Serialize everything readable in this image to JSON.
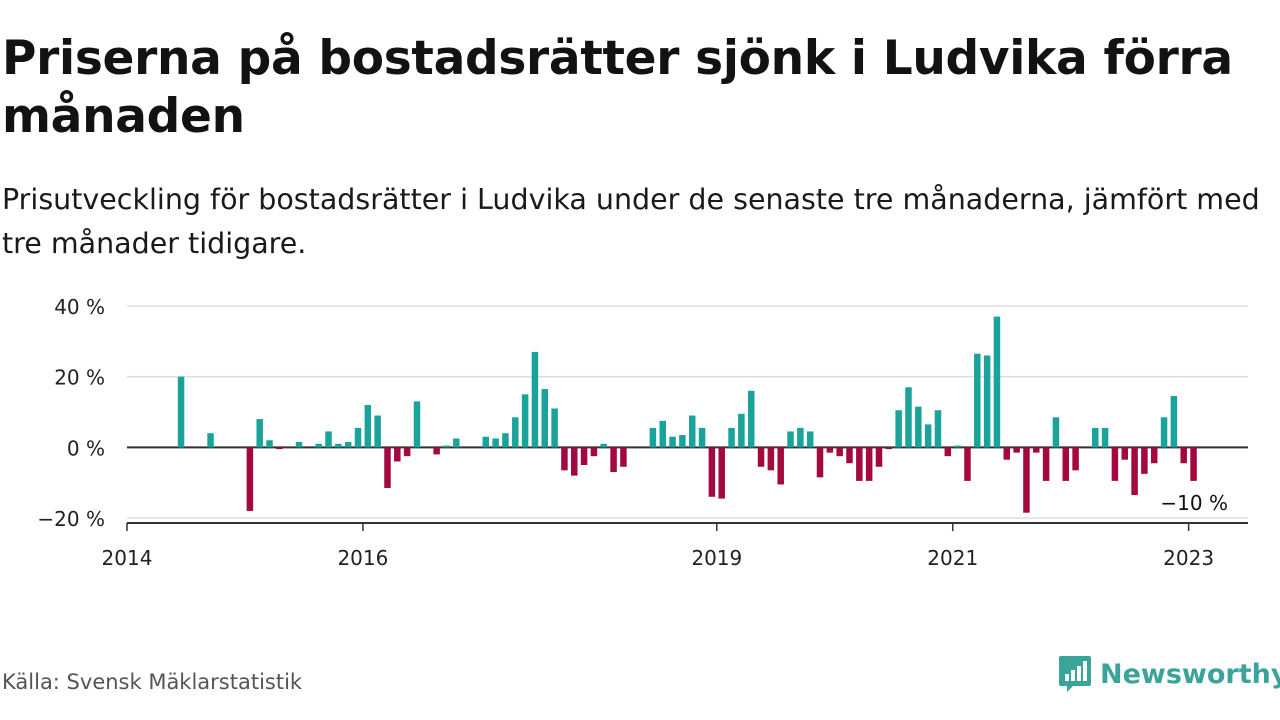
{
  "title": "Priserna på bostadsrätter sjönk i Ludvika förra månaden",
  "subtitle": "Prisutveckling för bostadsrätter i Ludvika under de senaste tre månaderna, jämfört med tre månader tidigare.",
  "source": "Källa: Svensk Mäklarstatistik",
  "brand": "Newsworthy",
  "colors": {
    "positive": "#1aa39b",
    "negative": "#a3093f",
    "brand": "#3aa39a",
    "grid": "#dddddd",
    "zero_line": "#333333"
  },
  "chart_data": {
    "type": "bar",
    "title": "",
    "xlabel": "",
    "ylabel": "",
    "ylim": [
      -20,
      40
    ],
    "y_ticks": [
      {
        "value": 40,
        "label": "40 %"
      },
      {
        "value": 20,
        "label": "20 %"
      },
      {
        "value": 0,
        "label": "0 %"
      },
      {
        "value": -20,
        "label": "−20 %"
      }
    ],
    "x_ticks": [
      {
        "date": "2014-01",
        "label": "2014"
      },
      {
        "date": "2016-01",
        "label": "2016"
      },
      {
        "date": "2019-01",
        "label": "2019"
      },
      {
        "date": "2021-01",
        "label": "2021"
      },
      {
        "date": "2023-01",
        "label": "2023"
      }
    ],
    "grid": true,
    "last_value_label": "−10 %",
    "series": [
      {
        "values": [
          {
            "date": "2014-06",
            "value": 20
          },
          {
            "date": "2014-09",
            "value": 4
          },
          {
            "date": "2015-01",
            "value": -18
          },
          {
            "date": "2015-02",
            "value": 8
          },
          {
            "date": "2015-03",
            "value": 2
          },
          {
            "date": "2015-04",
            "value": -0.5
          },
          {
            "date": "2015-06",
            "value": 1.5
          },
          {
            "date": "2015-08",
            "value": 1
          },
          {
            "date": "2015-09",
            "value": 4.5
          },
          {
            "date": "2015-10",
            "value": 1
          },
          {
            "date": "2015-11",
            "value": 1.5
          },
          {
            "date": "2015-12",
            "value": 5.5
          },
          {
            "date": "2016-01",
            "value": 12
          },
          {
            "date": "2016-02",
            "value": 9
          },
          {
            "date": "2016-03",
            "value": -11.5
          },
          {
            "date": "2016-04",
            "value": -4
          },
          {
            "date": "2016-05",
            "value": -2.5
          },
          {
            "date": "2016-06",
            "value": 13
          },
          {
            "date": "2016-08",
            "value": -2
          },
          {
            "date": "2016-09",
            "value": 0.5
          },
          {
            "date": "2016-10",
            "value": 2.5
          },
          {
            "date": "2017-01",
            "value": 3
          },
          {
            "date": "2017-02",
            "value": 2.5
          },
          {
            "date": "2017-03",
            "value": 4
          },
          {
            "date": "2017-04",
            "value": 8.5
          },
          {
            "date": "2017-05",
            "value": 15
          },
          {
            "date": "2017-06",
            "value": 27
          },
          {
            "date": "2017-07",
            "value": 16.5
          },
          {
            "date": "2017-08",
            "value": 11
          },
          {
            "date": "2017-09",
            "value": -6.5
          },
          {
            "date": "2017-10",
            "value": -8
          },
          {
            "date": "2017-11",
            "value": -5
          },
          {
            "date": "2017-12",
            "value": -2.5
          },
          {
            "date": "2018-01",
            "value": 1
          },
          {
            "date": "2018-02",
            "value": -7
          },
          {
            "date": "2018-03",
            "value": -5.5
          },
          {
            "date": "2018-06",
            "value": 5.5
          },
          {
            "date": "2018-07",
            "value": 7.5
          },
          {
            "date": "2018-08",
            "value": 3
          },
          {
            "date": "2018-09",
            "value": 3.5
          },
          {
            "date": "2018-10",
            "value": 9
          },
          {
            "date": "2018-11",
            "value": 5.5
          },
          {
            "date": "2018-12",
            "value": -14
          },
          {
            "date": "2019-01",
            "value": -14.5
          },
          {
            "date": "2019-02",
            "value": 5.5
          },
          {
            "date": "2019-03",
            "value": 9.5
          },
          {
            "date": "2019-04",
            "value": 16
          },
          {
            "date": "2019-05",
            "value": -5.5
          },
          {
            "date": "2019-06",
            "value": -6.5
          },
          {
            "date": "2019-07",
            "value": -10.5
          },
          {
            "date": "2019-08",
            "value": 4.5
          },
          {
            "date": "2019-09",
            "value": 5.5
          },
          {
            "date": "2019-10",
            "value": 4.5
          },
          {
            "date": "2019-11",
            "value": -8.5
          },
          {
            "date": "2019-12",
            "value": -1.5
          },
          {
            "date": "2020-01",
            "value": -2.5
          },
          {
            "date": "2020-02",
            "value": -4.5
          },
          {
            "date": "2020-03",
            "value": -9.5
          },
          {
            "date": "2020-04",
            "value": -9.5
          },
          {
            "date": "2020-05",
            "value": -5.5
          },
          {
            "date": "2020-06",
            "value": -0.5
          },
          {
            "date": "2020-07",
            "value": 10.5
          },
          {
            "date": "2020-08",
            "value": 17
          },
          {
            "date": "2020-09",
            "value": 11.5
          },
          {
            "date": "2020-10",
            "value": 6.5
          },
          {
            "date": "2020-11",
            "value": 10.5
          },
          {
            "date": "2020-12",
            "value": -2.5
          },
          {
            "date": "2021-01",
            "value": 0.5
          },
          {
            "date": "2021-02",
            "value": -9.5
          },
          {
            "date": "2021-03",
            "value": 26.5
          },
          {
            "date": "2021-04",
            "value": 26
          },
          {
            "date": "2021-05",
            "value": 37
          },
          {
            "date": "2021-06",
            "value": -3.5
          },
          {
            "date": "2021-07",
            "value": -1.5
          },
          {
            "date": "2021-08",
            "value": -18.5
          },
          {
            "date": "2021-09",
            "value": -1.5
          },
          {
            "date": "2021-10",
            "value": -9.5
          },
          {
            "date": "2021-11",
            "value": 8.5
          },
          {
            "date": "2021-12",
            "value": -9.5
          },
          {
            "date": "2022-01",
            "value": -6.5
          },
          {
            "date": "2022-03",
            "value": 5.5
          },
          {
            "date": "2022-04",
            "value": 5.5
          },
          {
            "date": "2022-05",
            "value": -9.5
          },
          {
            "date": "2022-06",
            "value": -3.5
          },
          {
            "date": "2022-07",
            "value": -13.5
          },
          {
            "date": "2022-08",
            "value": -7.5
          },
          {
            "date": "2022-09",
            "value": -4.5
          },
          {
            "date": "2022-10",
            "value": 8.5
          },
          {
            "date": "2022-11",
            "value": 14.5
          },
          {
            "date": "2022-12",
            "value": -4.5
          },
          {
            "date": "2023-01",
            "value": -9.5
          }
        ]
      }
    ]
  }
}
